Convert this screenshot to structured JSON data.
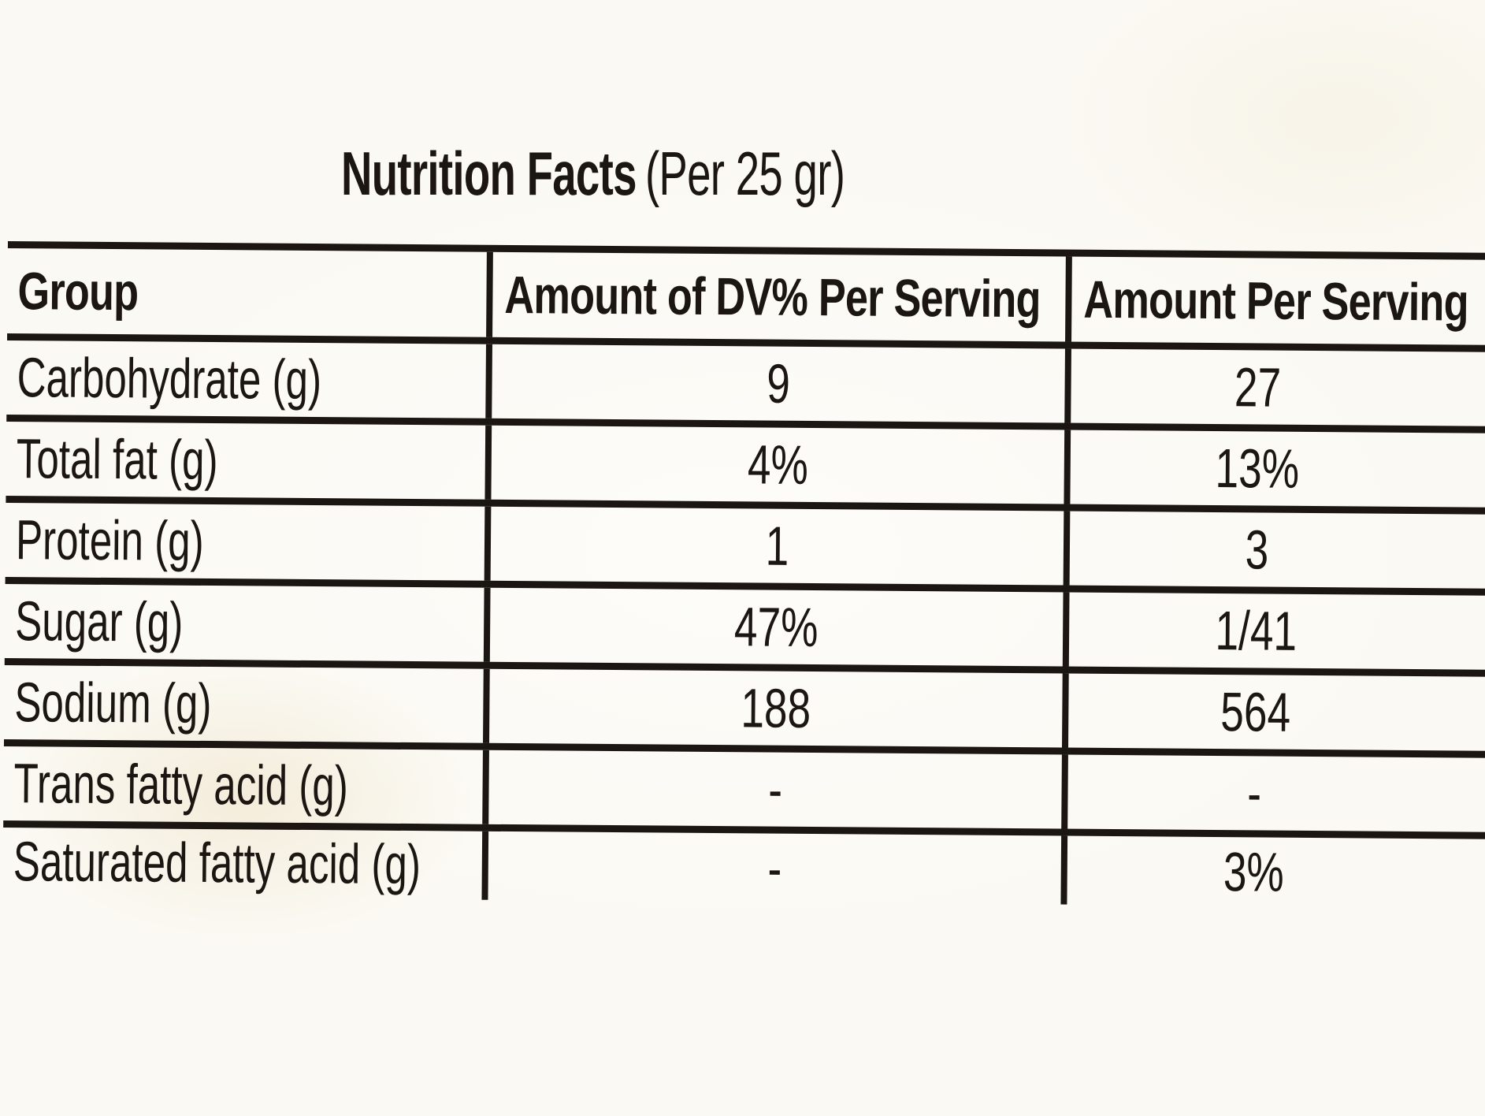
{
  "title": {
    "main": "Nutrition Facts",
    "suffix": "(Per 25 gr)"
  },
  "table": {
    "headers": {
      "group": "Group",
      "dv": "Amount of DV% Per Serving",
      "amount": "Amount Per Serving"
    },
    "rows": [
      {
        "label": "Carbohydrate (g)",
        "dv": "9",
        "amount": "27"
      },
      {
        "label": "Total fat (g)",
        "dv": "4%",
        "amount": "13%"
      },
      {
        "label": "Protein (g)",
        "dv": "1",
        "amount": "3"
      },
      {
        "label": "Sugar (g)",
        "dv": "47%",
        "amount": "1/41"
      },
      {
        "label": "Sodium (g)",
        "dv": "188",
        "amount": "564"
      },
      {
        "label": "Trans fatty acid (g)",
        "dv": "-",
        "amount": "-"
      },
      {
        "label": "Saturated fatty acid (g)",
        "dv": "-",
        "amount": "3%"
      }
    ],
    "colors": {
      "ink": "#1c1613",
      "paper": "#fbf9f3"
    }
  }
}
